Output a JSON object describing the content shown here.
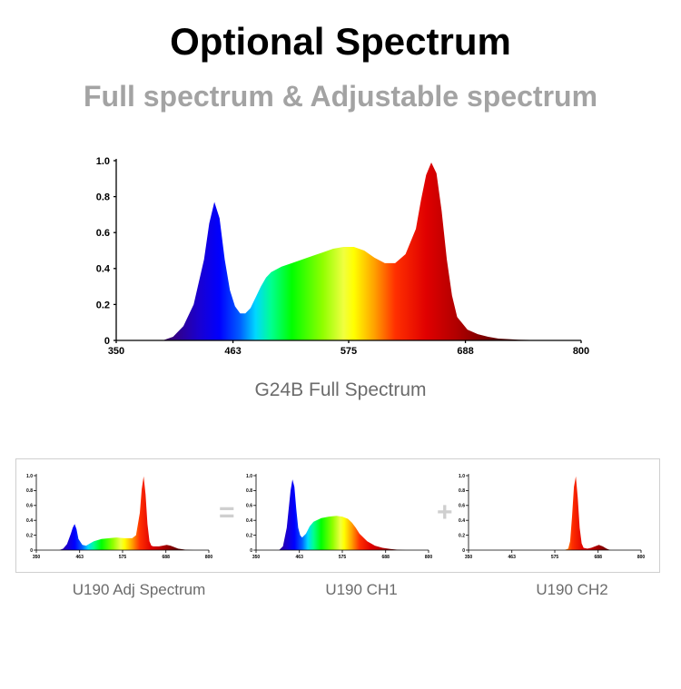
{
  "header": {
    "title": "Optional Spectrum",
    "subtitle": "Full spectrum & Adjustable spectrum"
  },
  "captions": {
    "main": "G24B Full Spectrum",
    "adj": "U190 Adj Spectrum",
    "ch1": "U190 CH1",
    "ch2": "U190 CH2"
  },
  "operators": {
    "equals": "=",
    "plus": "+"
  },
  "chart_data": [
    {
      "id": "g24b",
      "type": "area",
      "title": "G24B Full Spectrum",
      "xlabel": "",
      "ylabel": "",
      "xlim": [
        350,
        800
      ],
      "ylim": [
        0,
        1.0
      ],
      "xticks": [
        350,
        463,
        575,
        688,
        800
      ],
      "yticks": [
        0,
        0.2,
        0.4,
        0.6,
        0.8,
        1.0
      ],
      "fill": "wavelength-color gradient",
      "x": [
        395,
        405,
        415,
        425,
        435,
        440,
        445,
        450,
        455,
        460,
        465,
        470,
        475,
        480,
        485,
        490,
        495,
        500,
        510,
        520,
        530,
        540,
        550,
        560,
        570,
        580,
        590,
        600,
        610,
        620,
        630,
        640,
        645,
        650,
        655,
        660,
        665,
        670,
        675,
        680,
        690,
        700,
        710,
        720,
        740,
        760,
        780,
        800
      ],
      "y": [
        0,
        0.02,
        0.08,
        0.2,
        0.45,
        0.65,
        0.77,
        0.68,
        0.45,
        0.28,
        0.19,
        0.15,
        0.15,
        0.18,
        0.24,
        0.3,
        0.35,
        0.38,
        0.41,
        0.43,
        0.45,
        0.47,
        0.49,
        0.51,
        0.52,
        0.52,
        0.5,
        0.46,
        0.43,
        0.43,
        0.48,
        0.62,
        0.78,
        0.92,
        0.99,
        0.93,
        0.72,
        0.45,
        0.25,
        0.13,
        0.06,
        0.035,
        0.02,
        0.01,
        0.004,
        0.001,
        0,
        0
      ]
    },
    {
      "id": "u190-adj",
      "type": "area",
      "xlim": [
        350,
        800
      ],
      "ylim": [
        0,
        1.0
      ],
      "xticks": [
        350,
        463,
        575,
        688,
        800
      ],
      "yticks": [
        0,
        0.2,
        0.4,
        0.6,
        0.8,
        1.0
      ],
      "x": [
        410,
        420,
        430,
        440,
        445,
        450,
        455,
        460,
        470,
        480,
        490,
        500,
        520,
        540,
        560,
        580,
        600,
        610,
        620,
        625,
        630,
        635,
        640,
        645,
        650,
        655,
        660,
        670,
        680,
        690,
        700,
        710,
        720,
        740,
        760,
        800
      ],
      "y": [
        0,
        0.02,
        0.08,
        0.22,
        0.3,
        0.35,
        0.28,
        0.15,
        0.07,
        0.06,
        0.09,
        0.12,
        0.15,
        0.16,
        0.17,
        0.16,
        0.16,
        0.2,
        0.5,
        0.82,
        0.99,
        0.75,
        0.35,
        0.12,
        0.06,
        0.05,
        0.05,
        0.05,
        0.06,
        0.07,
        0.06,
        0.04,
        0.02,
        0.005,
        0,
        0
      ]
    },
    {
      "id": "u190-ch1",
      "type": "area",
      "xlim": [
        350,
        800
      ],
      "ylim": [
        0,
        1.0
      ],
      "xticks": [
        350,
        463,
        575,
        688,
        800
      ],
      "yticks": [
        0,
        0.2,
        0.4,
        0.6,
        0.8,
        1.0
      ],
      "x": [
        410,
        420,
        430,
        440,
        445,
        450,
        455,
        460,
        465,
        470,
        480,
        490,
        500,
        520,
        540,
        560,
        575,
        590,
        600,
        610,
        620,
        640,
        660,
        680,
        700,
        720,
        740,
        800
      ],
      "y": [
        0,
        0.05,
        0.3,
        0.8,
        0.95,
        0.85,
        0.55,
        0.3,
        0.2,
        0.17,
        0.22,
        0.32,
        0.38,
        0.43,
        0.45,
        0.46,
        0.45,
        0.42,
        0.37,
        0.3,
        0.22,
        0.12,
        0.06,
        0.03,
        0.015,
        0.005,
        0,
        0
      ]
    },
    {
      "id": "u190-ch2",
      "type": "area",
      "xlim": [
        350,
        800
      ],
      "ylim": [
        0,
        1.0
      ],
      "xticks": [
        350,
        463,
        575,
        688,
        800
      ],
      "yticks": [
        0,
        0.2,
        0.4,
        0.6,
        0.8,
        1.0
      ],
      "x": [
        600,
        610,
        615,
        620,
        625,
        630,
        635,
        640,
        645,
        650,
        660,
        670,
        680,
        690,
        700,
        710,
        720,
        800
      ],
      "y": [
        0,
        0.02,
        0.12,
        0.45,
        0.85,
        0.99,
        0.7,
        0.3,
        0.09,
        0.03,
        0.02,
        0.03,
        0.05,
        0.07,
        0.05,
        0.02,
        0,
        0
      ]
    }
  ]
}
